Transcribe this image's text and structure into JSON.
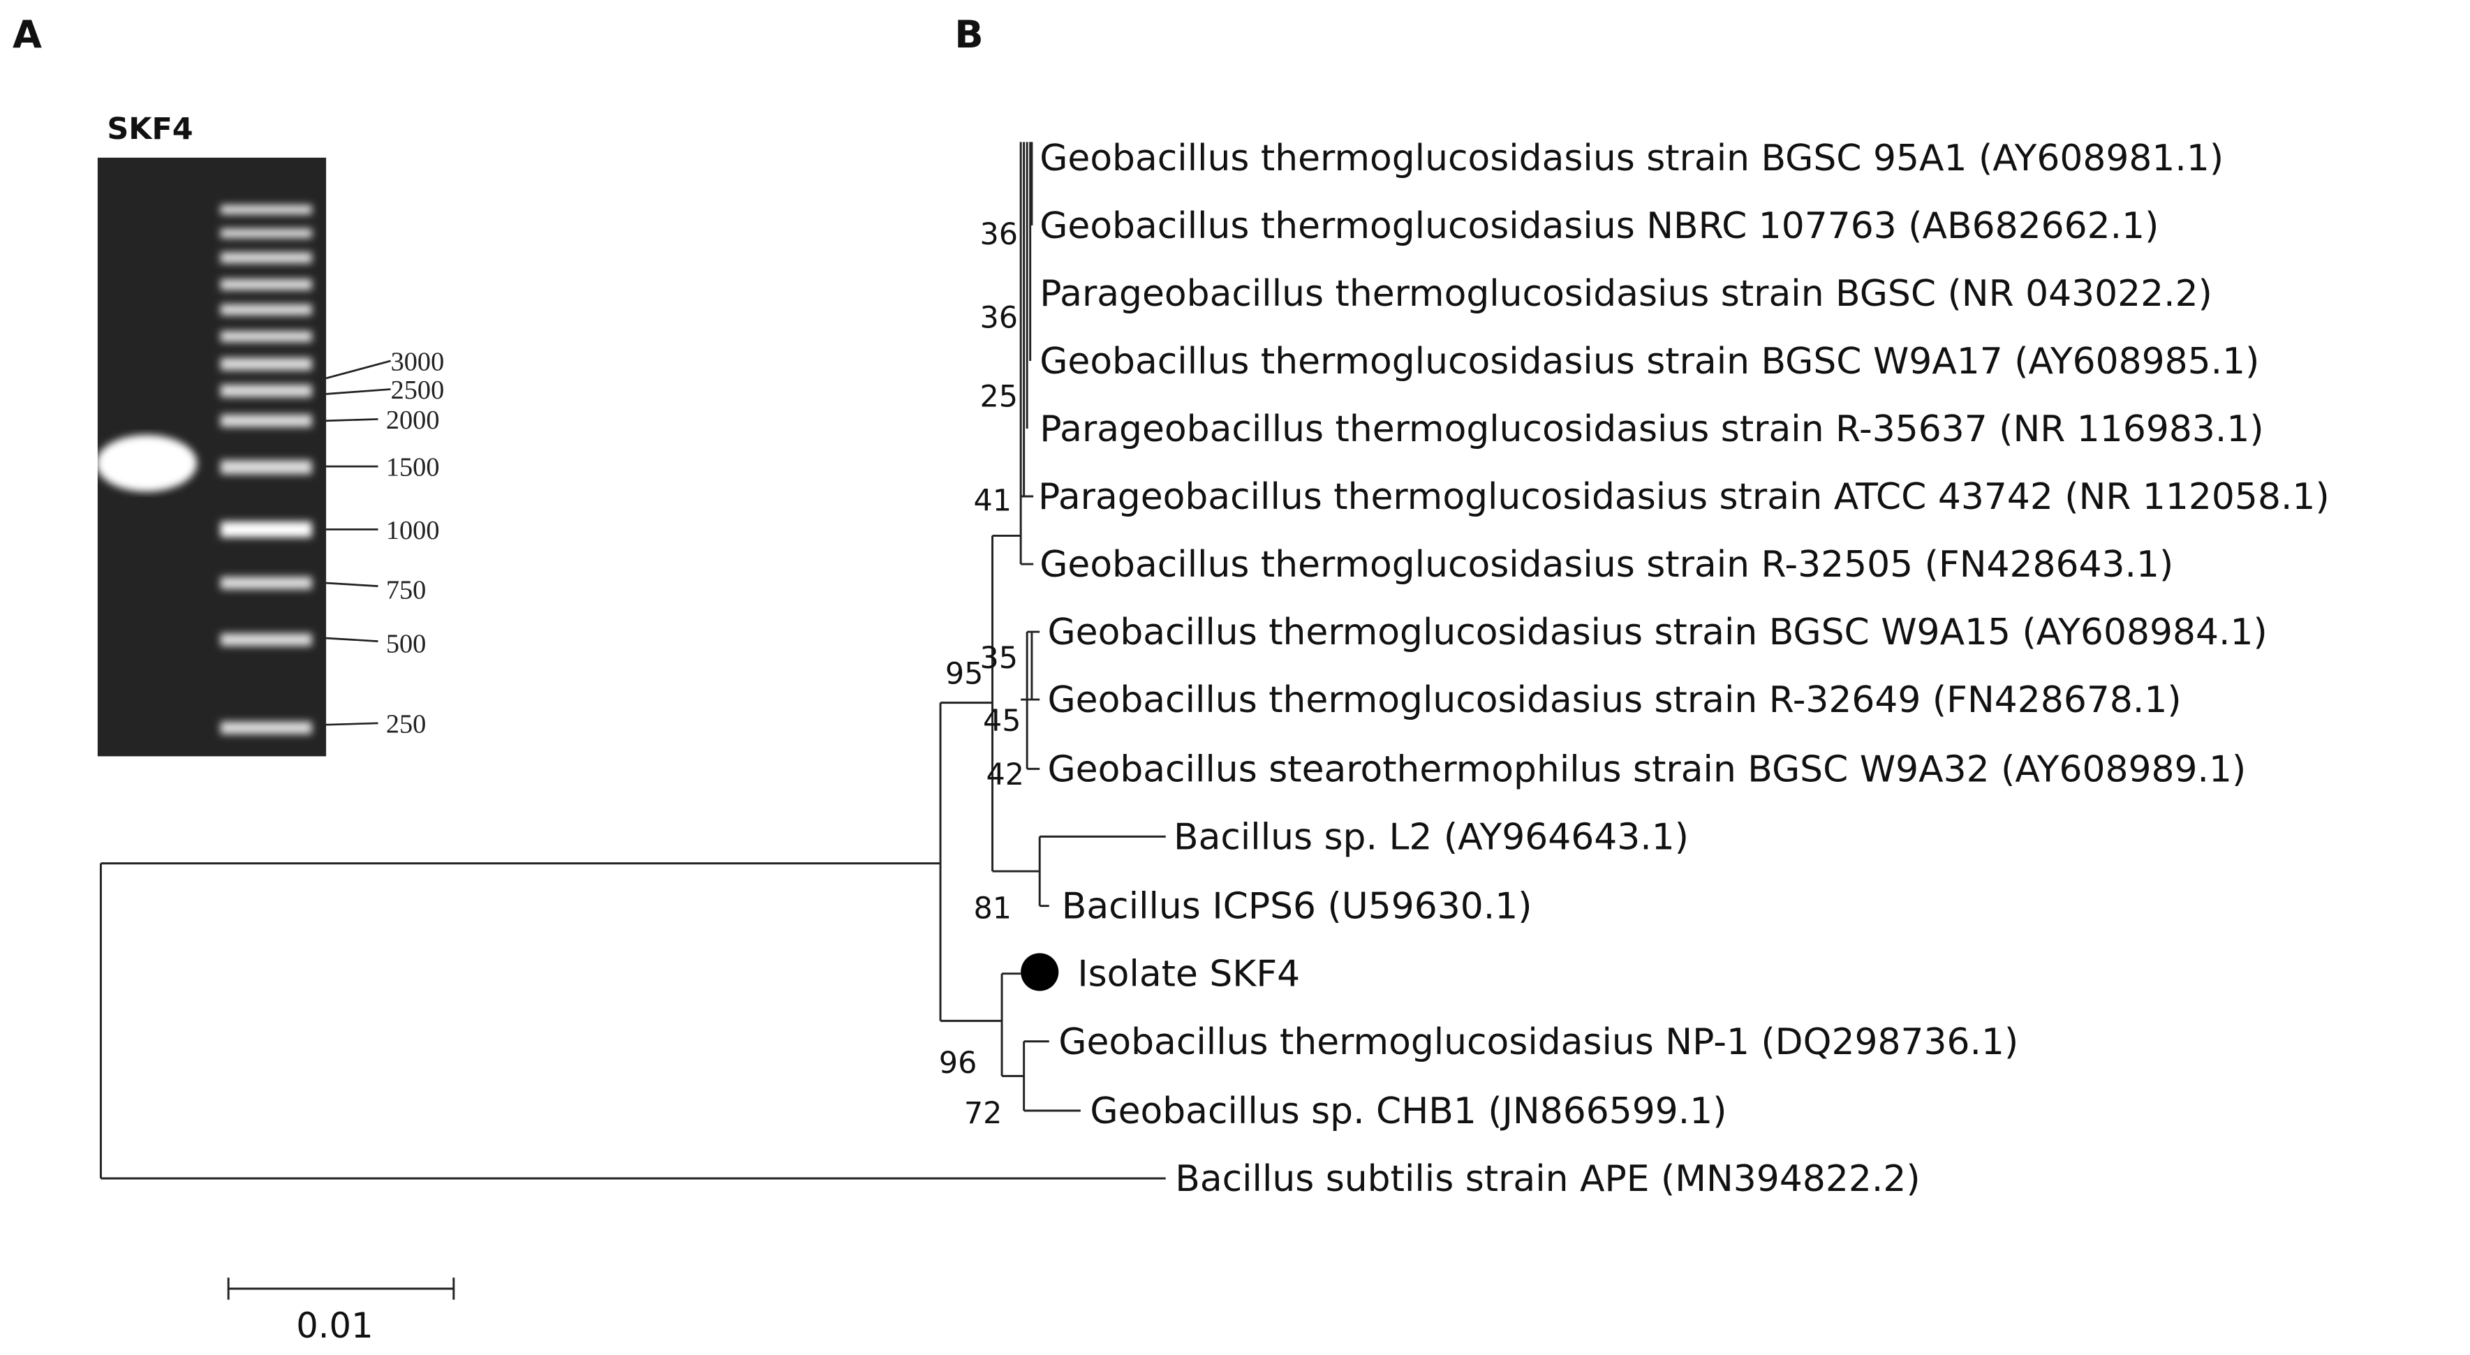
{
  "panel_a": {
    "label": "A",
    "gel_title": "SKF4",
    "ladder": [
      3000,
      2500,
      2000,
      1500,
      1000,
      750,
      500,
      250
    ]
  },
  "panel_b": {
    "label": "B",
    "leaves": [
      "Geobacillus thermoglucosidasius strain BGSC 95A1 (AY608981.1)",
      "Geobacillus thermoglucosidasius NBRC 107763 (AB682662.1)",
      "Parageobacillus thermoglucosidasius strain BGSC (NR 043022.2)",
      "Geobacillus thermoglucosidasius strain BGSC W9A17 (AY608985.1)",
      "Parageobacillus thermoglucosidasius strain R-35637 (NR 116983.1)",
      "Parageobacillus thermoglucosidasius strain ATCC 43742 (NR 112058.1)",
      "Geobacillus thermoglucosidasius strain R-32505 (FN428643.1)",
      "Geobacillus thermoglucosidasius strain BGSC W9A15 (AY608984.1)",
      "Geobacillus thermoglucosidasius strain R-32649 (FN428678.1)",
      "Geobacillus stearothermophilus strain BGSC W9A32 (AY608989.1)",
      "Bacillus sp. L2 (AY964643.1)",
      "Bacillus ICPS6 (U59630.1)",
      "Isolate SKF4",
      "Geobacillus thermoglucosidasius NP-1 (DQ298736.1)",
      "Geobacillus sp. CHB1 (JN866599.1)",
      "Bacillus subtilis strain APE (MN394822.2)"
    ],
    "bootstrap": [
      36,
      36,
      25,
      41,
      95,
      35,
      45,
      42,
      81,
      96,
      72
    ],
    "scale_bar": 0.01
  }
}
